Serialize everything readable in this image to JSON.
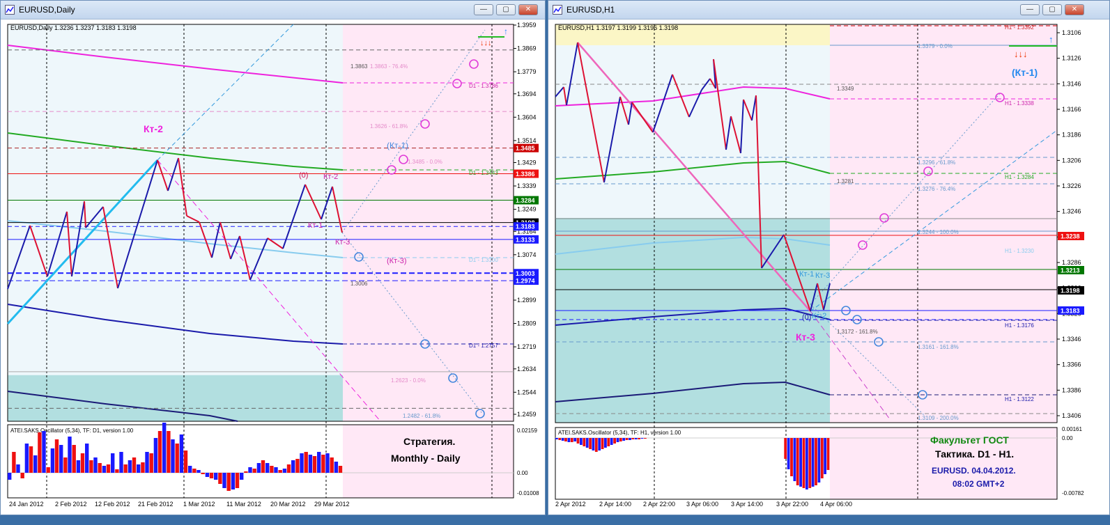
{
  "windows": [
    {
      "title": "EURUSD,Daily",
      "header": "EURUSD,Daily  1.3236 1.3237 1.3183 1.3198",
      "price_ticks": [
        "1.3959",
        "1.3869",
        "1.3779",
        "1.3694",
        "1.3604",
        "1.3514",
        "1.3429",
        "1.3339",
        "1.3249",
        "1.3164",
        "1.3074",
        "1.2899",
        "1.2809",
        "1.2719",
        "1.2634",
        "1.2544",
        "1.2459"
      ],
      "price_boxes": [
        {
          "label": "1.3485",
          "color": "#cc0000"
        },
        {
          "label": "1.3386",
          "color": "#ee1111"
        },
        {
          "label": "1.3284",
          "color": "#007700"
        },
        {
          "label": "1.3198",
          "color": "#000000"
        },
        {
          "label": "1.3183",
          "color": "#1a1aff"
        },
        {
          "label": "1.3133",
          "color": "#1a1aff"
        },
        {
          "label": "1.3003",
          "color": "#1a1aff"
        },
        {
          "label": "1.2974",
          "color": "#1a1aff"
        }
      ],
      "date_ticks": [
        "24 Jan 2012",
        "2 Feb 2012",
        "12 Feb 2012",
        "21 Feb 2012",
        "1 Mar 2012",
        "11 Mar 2012",
        "20 Mar 2012",
        "29 Mar 2012"
      ],
      "level_labels": [
        "1.3863",
        "1.3863 - 76.4%",
        "D1 - 1.3786",
        "1.3626 - 61.8%",
        "1.3485 - 0.0%",
        "D1 - 1.3443",
        "D1 - 1.3100",
        "1.3006",
        "D1 - 1.2757",
        "1.2623 - 0.0%",
        "1.2482 - 61.8%"
      ],
      "annotations": [
        "Кт-2",
        "(Кт-1)",
        "(0)",
        "Кт-2",
        "Кт-1",
        "Кт-3",
        "(Кт-3)"
      ],
      "osc_header": "ATEI.SAKS.Oscillator (5,34), TF: D1,  version 1.00",
      "osc_ticks": [
        "0.02159",
        "0.00",
        "-0.01008"
      ],
      "caption": [
        "Стратегия.",
        "Monthly - Daily"
      ]
    },
    {
      "title": "EURUSD,H1",
      "header": "EURUSD,H1  1.3197 1.3199 1.3196 1.3198",
      "price_ticks": [
        "1.3406",
        "1.3386",
        "1.3366",
        "1.3346",
        "1.3326",
        "1.3306",
        "1.3286",
        "1.3266",
        "1.3246",
        "1.3226",
        "1.3206",
        "1.3186",
        "1.3166",
        "1.3146",
        "1.3126",
        "1.3106"
      ],
      "price_boxes": [
        {
          "label": "1.3238",
          "color": "#ee1111"
        },
        {
          "label": "1.3213",
          "color": "#007700"
        },
        {
          "label": "1.3198",
          "color": "#000000"
        },
        {
          "label": "1.3183",
          "color": "#1a1aff"
        }
      ],
      "date_ticks": [
        "2 Apr 2012",
        "2 Apr 14:00",
        "2 Apr 22:00",
        "3 Apr 06:00",
        "3 Apr 14:00",
        "3 Apr 22:00",
        "4 Apr 06:00"
      ],
      "level_labels": [
        "H1 - 1.3392",
        "1.3379 - 0.0%",
        "1.3349",
        "H1 - 1.3338",
        "1.3296 - 61.8%",
        "H1 - 1.3284",
        "1.3281",
        "1.3276 - 76.4%",
        "1.3244 - 100.0%",
        "H1 - 1.3230",
        "H1 - 1.3176",
        "1.3172 - 161.8%",
        "1.3161 - 161.8%",
        "H1 - 1.3122",
        "1.3109 - 200.0%"
      ],
      "annotations": [
        "(Кт-1)",
        "Кт-1",
        "Кт-3",
        "(0)",
        "Кт-2",
        "Кт-3"
      ],
      "osc_header": "ATEI.SAKS.Oscillator (5,34), TF: H1,  version 1.00",
      "osc_ticks": [
        "0.00161",
        "0.00",
        "-0.00782"
      ],
      "caption": [
        "Факультет ГОСТ",
        "Тактика. D1 - H1.",
        "EURUSD. 04.04.2012.",
        "08:02  GMT+2"
      ]
    }
  ],
  "colors": {
    "up_bar": "#1a1aff",
    "down_bar": "#ee1111",
    "pink_zone": "#ffe8f6",
    "teal_zone": "#b2dfe0",
    "light_zone": "#eef7fb",
    "yellow_zone": "#fbf6c6"
  },
  "chart_data": [
    {
      "type": "line",
      "title": "EURUSD,Daily",
      "xlabel": "",
      "ylabel": "",
      "ylim": [
        1.2459,
        1.3959
      ],
      "x": [
        "24 Jan 2012",
        "2 Feb 2012",
        "12 Feb 2012",
        "21 Feb 2012",
        "1 Mar 2012",
        "11 Mar 2012",
        "20 Mar 2012",
        "29 Mar 2012"
      ],
      "series": [
        {
          "name": "",
          "values": [
            1.2974,
            1.3249,
            1.3003,
            1.3485,
            1.3164,
            1.3006,
            1.3386,
            1.3183
          ]
        }
      ]
    },
    {
      "type": "line",
      "title": "EURUSD,H1",
      "xlabel": "",
      "ylabel": "",
      "ylim": [
        1.3106,
        1.3406
      ],
      "x": [
        "2 Apr 2012",
        "2 Apr 14:00",
        "2 Apr 22:00",
        "3 Apr 06:00",
        "3 Apr 14:00",
        "3 Apr 22:00",
        "4 Apr 06:00"
      ],
      "series": [
        {
          "name": "",
          "values": [
            1.3346,
            1.3379,
            1.3306,
            1.3349,
            1.3226,
            1.3186,
            1.3198
          ]
        }
      ]
    }
  ]
}
